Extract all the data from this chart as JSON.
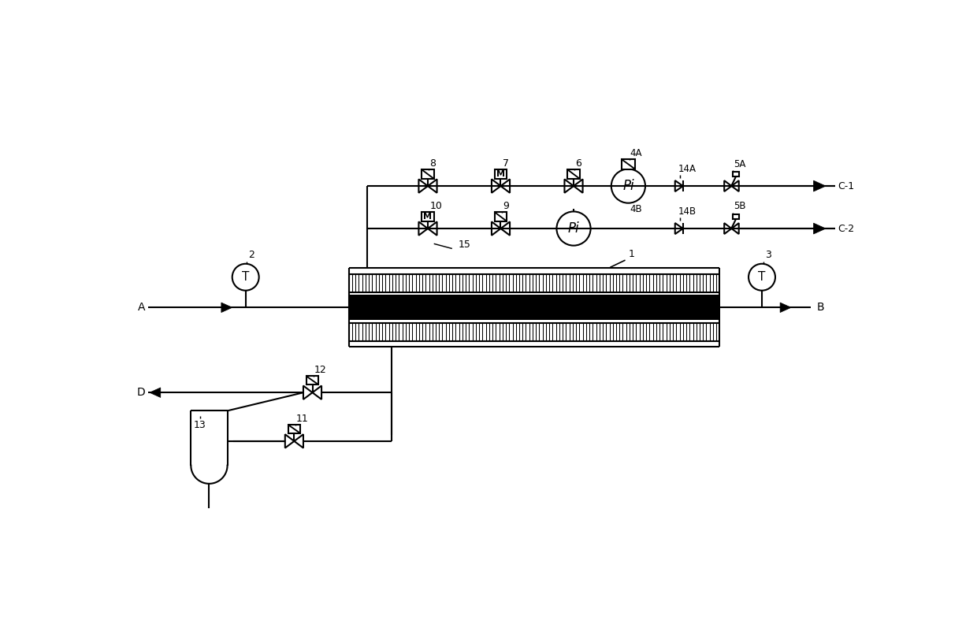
{
  "bg_color": "#ffffff",
  "lc": "#000000",
  "lw": 1.5,
  "figsize": [
    12.4,
    8.11
  ],
  "dpi": 100,
  "xlim": [
    0,
    124
  ],
  "ylim": [
    0,
    81
  ]
}
